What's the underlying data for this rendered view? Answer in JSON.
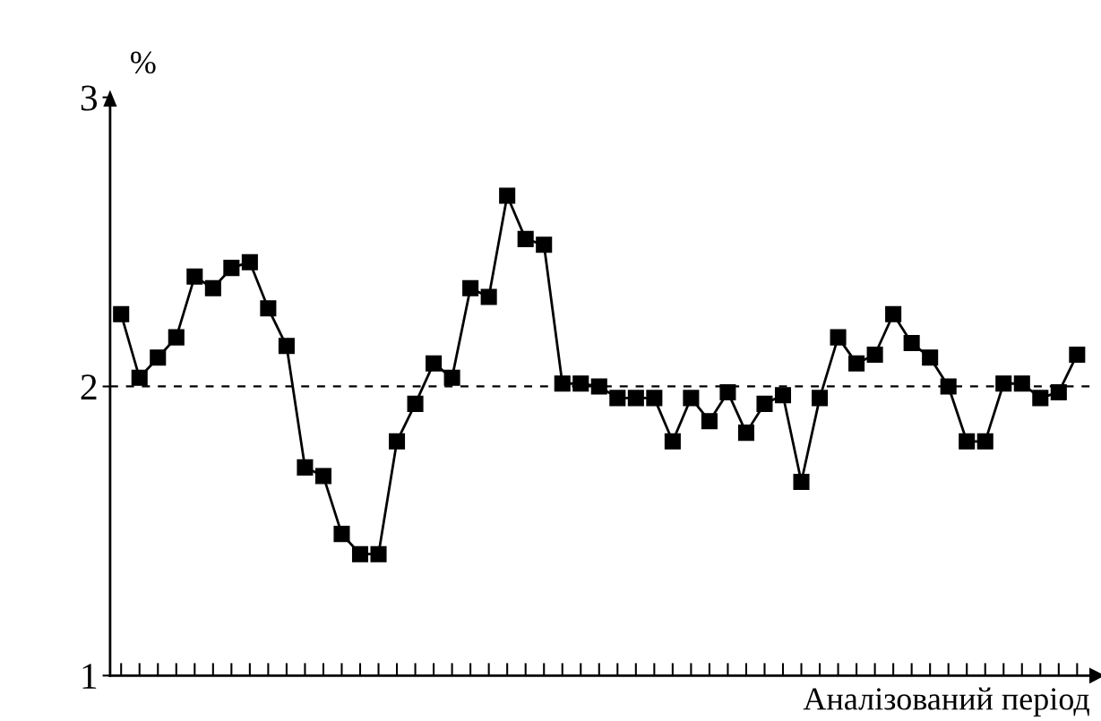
{
  "chart_data": {
    "type": "line",
    "xlabel": "Аналізований період",
    "ylabel": "%",
    "categories": [
      null,
      null,
      null,
      null,
      null,
      null,
      null,
      null,
      null,
      null,
      null,
      null,
      null,
      null,
      null,
      null,
      null,
      null,
      null,
      null,
      null,
      null,
      null,
      null,
      null,
      null,
      null,
      null,
      null,
      null,
      null,
      null,
      null,
      null,
      null,
      null,
      null,
      null,
      null,
      null,
      null,
      null,
      null,
      null,
      null,
      null,
      null,
      null,
      null,
      null,
      null,
      null,
      null
    ],
    "series": [
      {
        "color": "#000000",
        "values": [
          2.25,
          2.03,
          2.1,
          2.17,
          2.38,
          2.34,
          2.41,
          2.43,
          2.27,
          2.14,
          1.72,
          1.69,
          1.49,
          1.42,
          1.42,
          1.81,
          1.94,
          2.08,
          2.03,
          2.34,
          2.31,
          2.66,
          2.51,
          2.49,
          2.01,
          2.01,
          2.0,
          1.96,
          1.96,
          1.96,
          1.81,
          1.96,
          1.88,
          1.98,
          1.84,
          1.94,
          1.97,
          1.67,
          1.96,
          2.17,
          2.08,
          2.11,
          2.25,
          2.15,
          2.1,
          2.0,
          1.81,
          1.81,
          2.01,
          2.01,
          1.96,
          1.98,
          2.11
        ]
      }
    ],
    "ylim": [
      1,
      3
    ],
    "yticks": [
      1,
      2,
      3
    ],
    "tick_labels": "y",
    "ref_lines": [
      {
        "axis": "y",
        "value": 2,
        "color": "#000000",
        "line_style": "dashed"
      }
    ],
    "grid": false,
    "legend": false,
    "marker": "square",
    "line_style": "solid"
  }
}
